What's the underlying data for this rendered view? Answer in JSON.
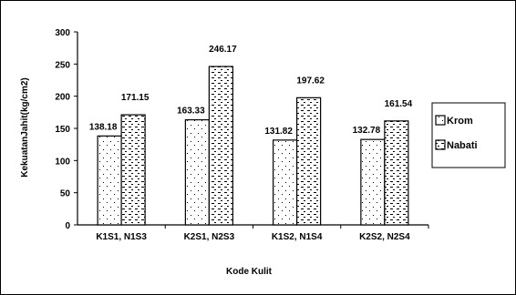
{
  "chart_data": {
    "type": "bar",
    "categories": [
      "K1S1, N1S3",
      "K2S1, N2S3",
      "K1S2, N1S4",
      "K2S2, N2S4"
    ],
    "series": [
      {
        "name": "Krom",
        "values": [
          138.18,
          163.33,
          131.82,
          132.78
        ],
        "labels": [
          "138.18",
          "163.33",
          "131.82",
          "132.78"
        ]
      },
      {
        "name": "Nabati",
        "values": [
          171.15,
          246.17,
          197.62,
          161.54
        ],
        "labels": [
          "171.15",
          "246.17",
          "197.62",
          "161.54"
        ]
      }
    ],
    "xlabel": "Kode Kulit",
    "ylabel": "KekuatanJahit(kg/cm2)",
    "ylim": [
      0,
      300
    ],
    "yticks": [
      0,
      50,
      100,
      150,
      200,
      250,
      300
    ],
    "grid": false,
    "legend_position": "right"
  }
}
